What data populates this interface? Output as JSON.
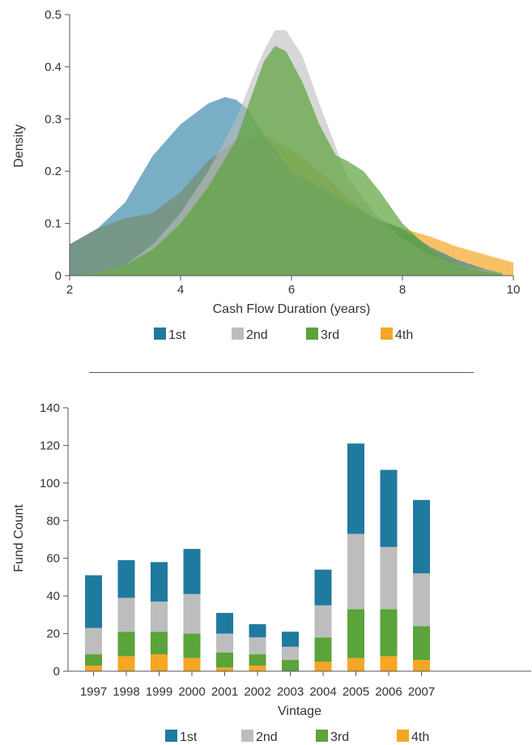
{
  "colors": {
    "1st": "#1f7aa0",
    "2nd": "#bdbdbd",
    "3rd": "#5ba33b",
    "4th": "#f5a623",
    "axis": "#555555",
    "divider": "#555555"
  },
  "chart_data": [
    {
      "type": "area",
      "xlabel": "Cash Flow Duration (years)",
      "ylabel": "Density",
      "xlim": [
        2,
        10
      ],
      "ylim": [
        0,
        0.5
      ],
      "xticks": [
        "2",
        "4",
        "6",
        "8",
        "10"
      ],
      "yticks": [
        "0",
        "0.1",
        "0.2",
        "0.3",
        "0.4",
        "0.5"
      ],
      "legend": [
        "1st",
        "2nd",
        "3rd",
        "4th"
      ],
      "legend_position": "bottom",
      "series": [
        {
          "name": "1st",
          "x": [
            2.0,
            2.5,
            3.0,
            3.5,
            4.0,
            4.5,
            4.8,
            5.0,
            5.2,
            5.5,
            6.0,
            6.5,
            7.0,
            7.5,
            8.0,
            8.5,
            9.0,
            9.5,
            9.8
          ],
          "values": [
            0.06,
            0.09,
            0.14,
            0.23,
            0.29,
            0.33,
            0.342,
            0.337,
            0.32,
            0.27,
            0.2,
            0.17,
            0.14,
            0.11,
            0.09,
            0.055,
            0.03,
            0.012,
            0.005
          ]
        },
        {
          "name": "2nd",
          "x": [
            2.0,
            2.5,
            3.0,
            3.5,
            4.0,
            4.5,
            5.0,
            5.3,
            5.5,
            5.7,
            5.9,
            6.2,
            6.5,
            7.0,
            7.5,
            8.0,
            8.5,
            9.0,
            9.5,
            9.8
          ],
          "values": [
            0.0,
            0.005,
            0.02,
            0.06,
            0.12,
            0.2,
            0.3,
            0.38,
            0.43,
            0.47,
            0.47,
            0.42,
            0.33,
            0.19,
            0.12,
            0.07,
            0.04,
            0.02,
            0.01,
            0.005
          ]
        },
        {
          "name": "3rd",
          "x": [
            2.0,
            2.5,
            3.0,
            3.5,
            4.0,
            4.5,
            5.0,
            5.3,
            5.5,
            5.7,
            5.9,
            6.2,
            6.5,
            6.8,
            7.0,
            7.3,
            7.6,
            8.0,
            8.5,
            9.0,
            9.5,
            9.8
          ],
          "values": [
            0.0,
            0.005,
            0.02,
            0.05,
            0.1,
            0.17,
            0.26,
            0.35,
            0.41,
            0.44,
            0.43,
            0.37,
            0.29,
            0.23,
            0.22,
            0.2,
            0.16,
            0.1,
            0.05,
            0.02,
            0.008,
            0.003
          ]
        },
        {
          "name": "4th",
          "x": [
            2.0,
            2.5,
            3.0,
            3.5,
            4.0,
            4.5,
            5.0,
            5.5,
            6.0,
            6.5,
            7.0,
            7.5,
            8.0,
            8.5,
            9.0,
            9.5,
            10.0
          ],
          "values": [
            0.06,
            0.09,
            0.11,
            0.12,
            0.16,
            0.22,
            0.26,
            0.27,
            0.24,
            0.2,
            0.15,
            0.11,
            0.09,
            0.075,
            0.055,
            0.04,
            0.025
          ]
        }
      ]
    },
    {
      "type": "bar",
      "stacked": true,
      "xlabel": "Vintage",
      "ylabel": "Fund Count",
      "ylim": [
        0,
        140
      ],
      "yticks": [
        "0",
        "20",
        "40",
        "60",
        "80",
        "100",
        "120",
        "140"
      ],
      "categories": [
        "1997",
        "1998",
        "1999",
        "2000",
        "2001",
        "2002",
        "2003",
        "2004",
        "2005",
        "2006",
        "2007"
      ],
      "legend": [
        "1st",
        "2nd",
        "3rd",
        "4th"
      ],
      "legend_position": "bottom",
      "series": [
        {
          "name": "4th",
          "values": [
            3,
            8,
            9,
            7,
            2,
            3,
            0,
            5,
            7,
            8,
            6
          ]
        },
        {
          "name": "3rd",
          "values": [
            6,
            13,
            12,
            13,
            8,
            6,
            6,
            13,
            26,
            25,
            18
          ]
        },
        {
          "name": "2nd",
          "values": [
            14,
            18,
            16,
            21,
            10,
            9,
            7,
            17,
            40,
            33,
            28
          ]
        },
        {
          "name": "1st",
          "values": [
            28,
            20,
            21,
            24,
            11,
            7,
            8,
            19,
            48,
            41,
            39
          ]
        }
      ]
    }
  ]
}
